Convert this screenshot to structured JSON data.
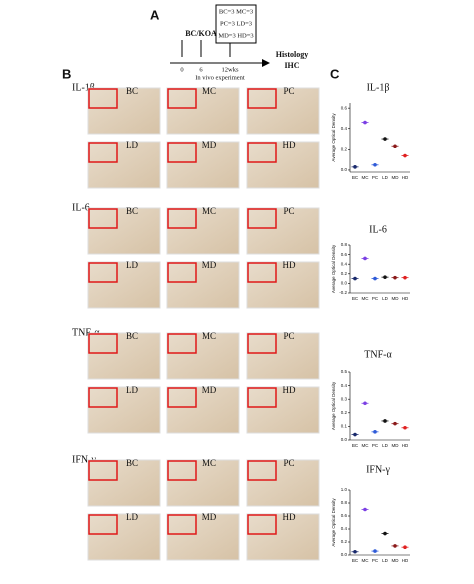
{
  "panel_a": {
    "letter": "A",
    "start": "BC/KOA",
    "times": [
      "0",
      "6",
      "12wks"
    ],
    "groups": [
      "BC=3 MC=3",
      "PC=3 LD=3",
      "MD=3 HD=3"
    ],
    "end": [
      "Histology",
      "IHC"
    ],
    "caption": "In vivo experiment"
  },
  "panel_b": {
    "letter": "B",
    "rows": [
      {
        "label": "IL-1β",
        "groups": [
          "BC",
          "MC",
          "PC",
          "LD",
          "MD",
          "HD"
        ]
      },
      {
        "label": "IL-6",
        "groups": [
          "BC",
          "MC",
          "PC",
          "LD",
          "MD",
          "HD"
        ]
      },
      {
        "label": "TNF-α",
        "groups": [
          "BC",
          "MC",
          "PC",
          "LD",
          "MD",
          "HD"
        ]
      },
      {
        "label": "IFN-γ",
        "groups": [
          "BC",
          "MC",
          "PC",
          "LD",
          "MD",
          "HD"
        ]
      }
    ]
  },
  "panel_c": {
    "letter": "C"
  },
  "chart_data": [
    {
      "type": "scatter",
      "title": "IL-1β",
      "y_label": "Average Optical Density",
      "categories": [
        "BC",
        "MC",
        "PC",
        "LD",
        "MD",
        "HD"
      ],
      "values": [
        0.03,
        0.46,
        0.05,
        0.3,
        0.23,
        0.14
      ],
      "colors": [
        "#1a2a6c",
        "#7b3fe4",
        "#2f5bd8",
        "#111111",
        "#8b1a1a",
        "#e02020"
      ],
      "ylim": [
        -0.02,
        0.65
      ],
      "yticks": [
        {
          "value": 0,
          "label": "0.0"
        },
        {
          "value": 0.2,
          "label": "0.2"
        },
        {
          "value": 0.4,
          "label": "0.4"
        },
        {
          "value": 0.6,
          "label": "0.6"
        }
      ]
    },
    {
      "type": "scatter",
      "title": "IL-6",
      "y_label": "Average Optical Density",
      "categories": [
        "BC",
        "MC",
        "PC",
        "LD",
        "MD",
        "HD"
      ],
      "values": [
        0.1,
        0.52,
        0.1,
        0.13,
        0.12,
        0.12
      ],
      "colors": [
        "#1a2a6c",
        "#7b3fe4",
        "#2f5bd8",
        "#111111",
        "#8b1a1a",
        "#e02020"
      ],
      "ylim": [
        -0.2,
        0.8
      ],
      "yticks": [
        {
          "value": -0.2,
          "label": "-0.2"
        },
        {
          "value": 0,
          "label": "0.0"
        },
        {
          "value": 0.2,
          "label": "0.2"
        },
        {
          "value": 0.4,
          "label": "0.4"
        },
        {
          "value": 0.6,
          "label": "0.6"
        },
        {
          "value": 0.8,
          "label": "0.8"
        }
      ]
    },
    {
      "type": "scatter",
      "title": "TNF-α",
      "y_label": "Average Optical Density",
      "categories": [
        "BC",
        "MC",
        "PC",
        "LD",
        "MD",
        "HD"
      ],
      "values": [
        0.04,
        0.27,
        0.06,
        0.14,
        0.12,
        0.09
      ],
      "colors": [
        "#1a2a6c",
        "#7b3fe4",
        "#2f5bd8",
        "#111111",
        "#8b1a1a",
        "#e02020"
      ],
      "ylim": [
        0,
        0.5
      ],
      "yticks": [
        {
          "value": 0,
          "label": "0.0"
        },
        {
          "value": 0.1,
          "label": "0.1"
        },
        {
          "value": 0.2,
          "label": "0.2"
        },
        {
          "value": 0.3,
          "label": "0.3"
        },
        {
          "value": 0.4,
          "label": "0.4"
        },
        {
          "value": 0.5,
          "label": "0.5"
        }
      ]
    },
    {
      "type": "scatter",
      "title": "IFN-γ",
      "y_label": "Average Optical Density",
      "categories": [
        "BC",
        "MC",
        "PC",
        "LD",
        "MD",
        "HD"
      ],
      "values": [
        0.05,
        0.7,
        0.06,
        0.33,
        0.14,
        0.12
      ],
      "colors": [
        "#1a2a6c",
        "#7b3fe4",
        "#2f5bd8",
        "#111111",
        "#8b1a1a",
        "#e02020"
      ],
      "ylim": [
        0,
        1
      ],
      "yticks": [
        {
          "value": 0,
          "label": "0.0"
        },
        {
          "value": 0.2,
          "label": "0.2"
        },
        {
          "value": 0.4,
          "label": "0.4"
        },
        {
          "value": 0.6,
          "label": "0.6"
        },
        {
          "value": 0.8,
          "label": "0.8"
        },
        {
          "value": 1,
          "label": "1.0"
        }
      ]
    }
  ]
}
